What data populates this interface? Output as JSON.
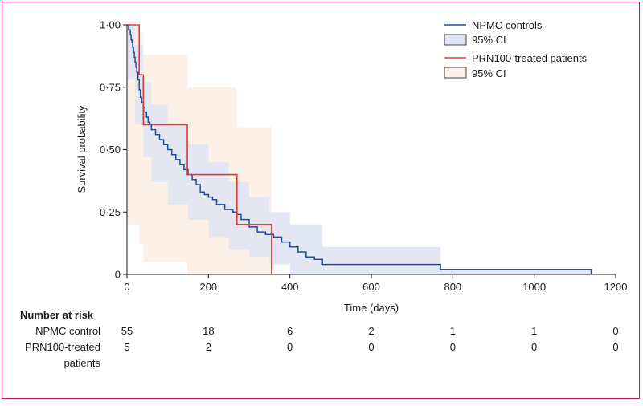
{
  "chart_data": {
    "type": "line",
    "xlabel": "Time (days)",
    "ylabel": "Survival probability",
    "xlim": [
      0,
      1200
    ],
    "ylim": [
      0,
      1
    ],
    "xticks": [
      0,
      200,
      400,
      600,
      800,
      1000,
      1200
    ],
    "xtick_labels": [
      "0",
      "200",
      "400",
      "600",
      "800",
      "1000",
      "1200"
    ],
    "yticks": [
      0,
      0.25,
      0.5,
      0.75,
      1.0
    ],
    "ytick_labels": [
      "0",
      "0·25",
      "0·50",
      "0·75",
      "1·00"
    ],
    "legend_position": "top-right",
    "series": [
      {
        "name": "NPMC controls",
        "color": "#1f4e9c",
        "step_x": [
          0,
          4,
          8,
          10,
          12,
          14,
          16,
          18,
          20,
          22,
          24,
          27,
          30,
          33,
          36,
          40,
          44,
          48,
          52,
          56,
          60,
          70,
          80,
          90,
          100,
          110,
          120,
          130,
          140,
          150,
          160,
          170,
          180,
          190,
          200,
          210,
          220,
          240,
          260,
          270,
          280,
          300,
          320,
          340,
          360,
          380,
          400,
          420,
          440,
          460,
          480,
          770,
          1140
        ],
        "step_y": [
          1.0,
          0.98,
          0.96,
          0.94,
          0.93,
          0.91,
          0.89,
          0.87,
          0.85,
          0.83,
          0.81,
          0.78,
          0.74,
          0.71,
          0.69,
          0.67,
          0.65,
          0.63,
          0.61,
          0.6,
          0.58,
          0.56,
          0.54,
          0.52,
          0.5,
          0.48,
          0.46,
          0.44,
          0.42,
          0.4,
          0.38,
          0.36,
          0.33,
          0.32,
          0.31,
          0.3,
          0.28,
          0.26,
          0.25,
          0.24,
          0.22,
          0.19,
          0.17,
          0.16,
          0.15,
          0.13,
          0.11,
          0.09,
          0.07,
          0.06,
          0.04,
          0.02,
          0.0
        ],
        "ci_name": "95% CI",
        "ci_color": "#dfe4f2",
        "ci_x": [
          0,
          20,
          40,
          60,
          100,
          150,
          200,
          250,
          300,
          350,
          400,
          480,
          770,
          1140
        ],
        "ci_lower": [
          1.0,
          0.78,
          0.6,
          0.47,
          0.37,
          0.28,
          0.22,
          0.15,
          0.1,
          0.07,
          0.04,
          0.0,
          0.0,
          0.0
        ],
        "ci_upper": [
          1.0,
          0.92,
          0.77,
          0.68,
          0.6,
          0.52,
          0.45,
          0.37,
          0.31,
          0.25,
          0.2,
          0.11,
          0.02,
          0.02
        ]
      },
      {
        "name": "PRN100-treated patients",
        "color": "#e53935",
        "step_x": [
          0,
          30,
          35,
          40,
          148,
          270,
          290,
          355
        ],
        "step_y": [
          1.0,
          0.8,
          0.8,
          0.6,
          0.4,
          0.2,
          0.2,
          0.0
        ],
        "ci_name": "95% CI",
        "ci_color": "#fdf0e6",
        "ci_x": [
          0,
          30,
          40,
          148,
          270,
          355
        ],
        "ci_lower": [
          1.0,
          0.2,
          0.12,
          0.05,
          0.0,
          0.0
        ],
        "ci_upper": [
          1.0,
          0.97,
          0.88,
          0.75,
          0.59,
          0.59
        ]
      }
    ],
    "risk_table": {
      "title": "Number at risk",
      "rows": [
        {
          "label": "NPMC control",
          "values": [
            "55",
            "18",
            "6",
            "2",
            "1",
            "1",
            "0"
          ]
        },
        {
          "label_line1": "PRN100-treated",
          "label_line2": "patients",
          "values": [
            "5",
            "2",
            "0",
            "0",
            "0",
            "0",
            "0"
          ]
        }
      ]
    }
  }
}
